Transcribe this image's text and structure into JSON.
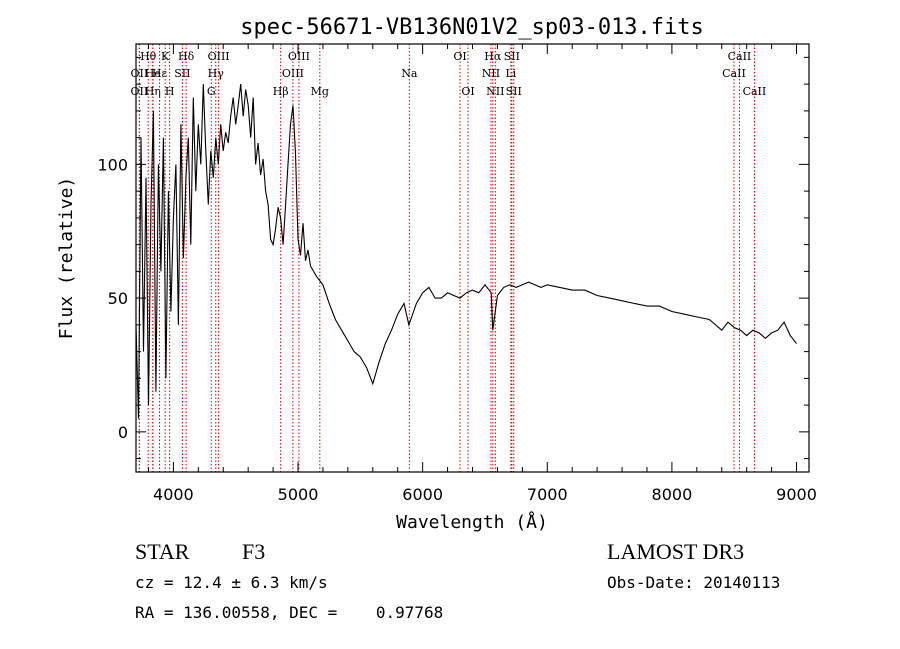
{
  "chart_data": {
    "type": "line",
    "title": "spec-56671-VB136N01V2_sp03-013.fits",
    "xlabel": "Wavelength (Å)",
    "ylabel": "Flux (relative)",
    "xlim": [
      3700,
      9100
    ],
    "ylim": [
      -15,
      145
    ],
    "xticks": [
      "4000",
      "5000",
      "6000",
      "7000",
      "8000",
      "9000"
    ],
    "yticks": [
      "0",
      "50",
      "100"
    ],
    "xtick_values": [
      4000,
      5000,
      6000,
      7000,
      8000,
      9000
    ],
    "ytick_values": [
      0,
      50,
      100
    ],
    "series": [
      {
        "name": "spectrum",
        "color": "#000000",
        "x": [
          3700,
          3720,
          3740,
          3760,
          3780,
          3800,
          3820,
          3840,
          3860,
          3880,
          3900,
          3920,
          3940,
          3960,
          3980,
          4000,
          4020,
          4040,
          4060,
          4080,
          4100,
          4120,
          4140,
          4160,
          4180,
          4200,
          4220,
          4240,
          4260,
          4280,
          4300,
          4320,
          4340,
          4360,
          4380,
          4400,
          4420,
          4440,
          4460,
          4480,
          4500,
          4520,
          4540,
          4560,
          4580,
          4600,
          4620,
          4640,
          4660,
          4680,
          4700,
          4720,
          4740,
          4760,
          4780,
          4800,
          4820,
          4840,
          4860,
          4880,
          4900,
          4920,
          4940,
          4960,
          4980,
          5000,
          5020,
          5040,
          5060,
          5080,
          5100,
          5150,
          5200,
          5250,
          5300,
          5350,
          5400,
          5450,
          5500,
          5550,
          5600,
          5650,
          5700,
          5750,
          5800,
          5850,
          5890,
          5950,
          6000,
          6050,
          6100,
          6150,
          6200,
          6250,
          6300,
          6350,
          6400,
          6450,
          6500,
          6550,
          6563,
          6600,
          6650,
          6700,
          6750,
          6800,
          6850,
          6900,
          6950,
          7000,
          7100,
          7200,
          7300,
          7400,
          7500,
          7600,
          7700,
          7800,
          7900,
          8000,
          8100,
          8200,
          8300,
          8400,
          8450,
          8500,
          8550,
          8600,
          8650,
          8700,
          8750,
          8800,
          8850,
          8900,
          8950,
          9000
        ],
        "y": [
          40,
          5,
          110,
          30,
          95,
          10,
          85,
          120,
          15,
          100,
          60,
          110,
          20,
          90,
          45,
          80,
          100,
          40,
          115,
          65,
          95,
          110,
          70,
          125,
          90,
          115,
          100,
          130,
          105,
          85,
          105,
          95,
          110,
          100,
          115,
          105,
          112,
          108,
          118,
          125,
          115,
          122,
          130,
          118,
          128,
          122,
          110,
          125,
          100,
          108,
          96,
          102,
          90,
          85,
          72,
          70,
          76,
          84,
          80,
          70,
          85,
          100,
          115,
          122,
          104,
          72,
          66,
          78,
          64,
          68,
          62,
          58,
          55,
          48,
          42,
          38,
          34,
          30,
          28,
          24,
          18,
          26,
          33,
          38,
          44,
          48,
          40,
          48,
          52,
          54,
          50,
          50,
          52,
          51,
          50,
          52,
          53,
          52,
          55,
          52,
          38,
          51,
          54,
          55,
          54,
          55,
          56,
          55,
          54,
          55,
          54,
          53,
          53,
          51,
          50,
          49,
          48,
          47,
          47,
          45,
          44,
          43,
          42,
          38,
          41,
          39,
          38,
          36,
          38,
          37,
          35,
          37,
          38,
          41,
          36,
          33
        ]
      }
    ],
    "line_markers": [
      {
        "label": "OII",
        "x": 3727,
        "row": 2
      },
      {
        "label": "OII",
        "x": 3727,
        "row": 3
      },
      {
        "label": "Hθ",
        "x": 3798,
        "row": 1
      },
      {
        "label": "He",
        "x": 3835,
        "row": 2
      },
      {
        "label": "Hη",
        "x": 3835,
        "row": 3
      },
      {
        "label": "Hε",
        "x": 3889,
        "row": 2
      },
      {
        "label": "K",
        "x": 3934,
        "row": 1
      },
      {
        "label": "H",
        "x": 3970,
        "row": 3
      },
      {
        "label": "SII",
        "x": 4072,
        "row": 2
      },
      {
        "label": "Hδ",
        "x": 4102,
        "row": 1
      },
      {
        "label": "OIII",
        "x": 4363,
        "row": 1
      },
      {
        "label": "Hγ",
        "x": 4340,
        "row": 2
      },
      {
        "label": "G",
        "x": 4304,
        "row": 3
      },
      {
        "label": "Hβ",
        "x": 4861,
        "row": 3
      },
      {
        "label": "OIII",
        "x": 4959,
        "row": 2
      },
      {
        "label": "OIII",
        "x": 5007,
        "row": 1
      },
      {
        "label": "Mg",
        "x": 5175,
        "row": 3
      },
      {
        "label": "Na",
        "x": 5893,
        "row": 2
      },
      {
        "label": "OI",
        "x": 6300,
        "row": 1
      },
      {
        "label": "OI",
        "x": 6364,
        "row": 3
      },
      {
        "label": "Hα",
        "x": 6563,
        "row": 1
      },
      {
        "label": "NII",
        "x": 6548,
        "row": 2
      },
      {
        "label": "NII",
        "x": 6583,
        "row": 3
      },
      {
        "label": "SII",
        "x": 6716,
        "row": 1
      },
      {
        "label": "Li",
        "x": 6708,
        "row": 2
      },
      {
        "label": "SII",
        "x": 6731,
        "row": 3
      },
      {
        "label": "CaII",
        "x": 8542,
        "row": 1
      },
      {
        "label": "CaII",
        "x": 8498,
        "row": 2
      },
      {
        "label": "CaII",
        "x": 8662,
        "row": 3
      }
    ],
    "marker_color": "#cc0000"
  },
  "info": {
    "class_label": "STAR",
    "subclass": "F3",
    "survey": "LAMOST DR3",
    "cz": "cz = 12.4 ± 6.3 km/s",
    "obs_date": "Obs-Date: 20140113",
    "radec": "RA = 136.00558, DEC =    0.97768"
  }
}
